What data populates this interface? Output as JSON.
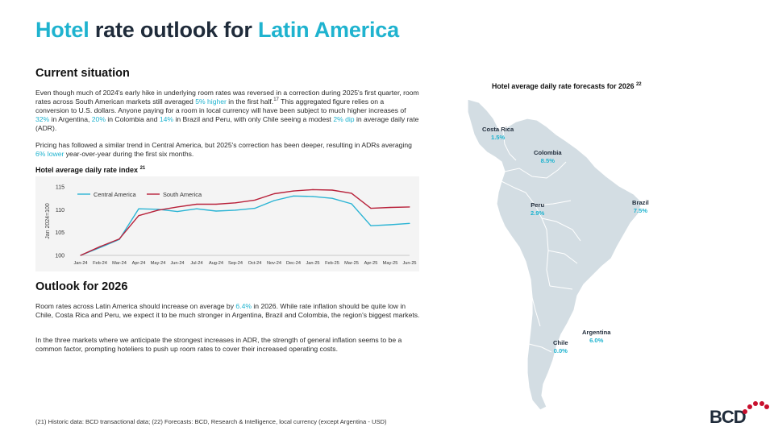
{
  "title": {
    "part1": "Hotel",
    "part2": " rate outlook for ",
    "part3": "Latin America"
  },
  "current": {
    "heading": "Current situation",
    "p1": [
      {
        "t": "Even though much of 2024's early hike in underlying room rates was reversed in a correction during 2025's first quarter, room rates across South American markets still averaged "
      },
      {
        "t": "5% higher",
        "accent": true
      },
      {
        "t": " in the first half."
      },
      {
        "t": "17",
        "sup": true
      },
      {
        "t": " This aggregated figure relies on a conversion to U.S. dollars. Anyone paying for a room in local currency will have been subject to much higher increases of "
      },
      {
        "t": "32%",
        "accent": true
      },
      {
        "t": " in Argentina, "
      },
      {
        "t": "20%",
        "accent": true
      },
      {
        "t": " in Colombia and "
      },
      {
        "t": "14%",
        "accent": true
      },
      {
        "t": " in Brazil and Peru, with only Chile seeing a modest "
      },
      {
        "t": "2% dip",
        "accent": true
      },
      {
        "t": " in average daily rate (ADR)."
      }
    ],
    "p2": [
      {
        "t": "Pricing has followed a similar trend in Central America, but 2025's correction has been deeper, resulting in ADRs averaging "
      },
      {
        "t": "6% lower",
        "accent": true
      },
      {
        "t": " year-over-year during the first six months."
      }
    ]
  },
  "chart_title": "Hotel average daily rate index",
  "chart_title_ref": "21",
  "chart_data": {
    "type": "line",
    "title": "Hotel average daily rate index",
    "ylabel": "Jan 2024=100",
    "xlabel": "",
    "ylim": [
      100,
      115
    ],
    "yticks": [
      100,
      105,
      110,
      115
    ],
    "categories": [
      "Jan-24",
      "Feb-24",
      "Mar-24",
      "Apr-24",
      "May-24",
      "Jun-24",
      "Jul-24",
      "Aug-24",
      "Sep-24",
      "Oct-24",
      "Nov-24",
      "Dec-24",
      "Jan-25",
      "Feb-25",
      "Mar-25",
      "Apr-25",
      "May-25",
      "Jun-25"
    ],
    "series": [
      {
        "name": "Central America",
        "color": "#2bb4d4",
        "values": [
          100,
          101.7,
          103.5,
          110.2,
          110.1,
          109.6,
          110.2,
          109.7,
          109.9,
          110.3,
          112.0,
          113.0,
          112.9,
          112.5,
          111.3,
          106.5,
          106.7,
          107.0
        ]
      },
      {
        "name": "South America",
        "color": "#b8213a",
        "values": [
          100,
          101.9,
          103.6,
          108.7,
          109.9,
          110.6,
          111.2,
          111.2,
          111.5,
          112.1,
          113.5,
          114.1,
          114.4,
          114.3,
          113.6,
          110.3,
          110.5,
          110.6
        ]
      }
    ],
    "legend": "top-left",
    "grid": false
  },
  "outlook": {
    "heading": "Outlook for 2026",
    "p1": [
      {
        "t": "Room rates across Latin America should increase on average by "
      },
      {
        "t": "6.4%",
        "accent": true
      },
      {
        "t": " in 2026. While rate inflation should be quite low in Chile, Costa Rica and Peru, we expect it to be much stronger in Argentina, Brazil and Colombia, the region's biggest markets."
      }
    ],
    "p2": [
      {
        "t": "In the three markets where we anticipate the strongest increases in ADR, the strength of general inflation seems to be a common factor, prompting hoteliers to push up room rates to cover their increased operating costs."
      }
    ]
  },
  "footnote": "(21) Historic data: BCD transactional data; (22) Forecasts: BCD, Research & Intelligence, local currency (except Argentina - USD)",
  "map": {
    "title": "Hotel average daily rate forecasts for 2026",
    "title_ref": "22",
    "land_color": "#d3dde3",
    "border_color": "#ffffff",
    "forecasts": [
      {
        "country": "Costa Rica",
        "value": "1.5%"
      },
      {
        "country": "Colombia",
        "value": "8.5%"
      },
      {
        "country": "Peru",
        "value": "2.9%"
      },
      {
        "country": "Brazil",
        "value": "7.5%"
      },
      {
        "country": "Chile",
        "value": "0.0%"
      },
      {
        "country": "Argentina",
        "value": "6.0%"
      }
    ]
  },
  "logo": {
    "text": "BCD"
  }
}
